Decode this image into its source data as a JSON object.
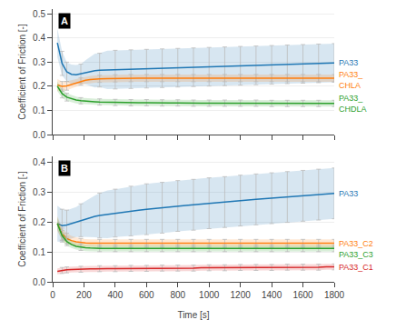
{
  "chart_data": [
    {
      "type": "line",
      "title": "A",
      "ylabel": "Coefficient of Friction [-]",
      "x": [
        30,
        60,
        90,
        120,
        150,
        180,
        210,
        240,
        270,
        300,
        350,
        400,
        450,
        500,
        550,
        600,
        650,
        700,
        750,
        800,
        850,
        900,
        950,
        1000,
        1050,
        1100,
        1150,
        1200,
        1250,
        1300,
        1350,
        1400,
        1450,
        1500,
        1550,
        1600,
        1650,
        1700,
        1750,
        1800
      ],
      "error_bar_x": [
        60,
        90,
        180,
        300,
        400,
        500,
        600,
        700,
        800,
        900,
        1000,
        1100,
        1200,
        1300,
        1400,
        1500,
        1600,
        1700,
        1800
      ],
      "series": [
        {
          "name": "PA33",
          "values": [
            0.38,
            0.295,
            0.26,
            0.25,
            0.248,
            0.252,
            0.258,
            0.262,
            0.265,
            0.267,
            0.268,
            0.269,
            0.27,
            0.271,
            0.272,
            0.273,
            0.274,
            0.275,
            0.276,
            0.277,
            0.278,
            0.279,
            0.28,
            0.281,
            0.282,
            0.283,
            0.284,
            0.285,
            0.286,
            0.287,
            0.288,
            0.289,
            0.29,
            0.291,
            0.292,
            0.293,
            0.294,
            0.295,
            0.296,
            0.297
          ],
          "error": [
            0.06,
            0.05,
            0.04,
            0.04,
            0.04,
            0.04,
            0.05,
            0.06,
            0.07,
            0.07,
            0.08,
            0.08,
            0.08,
            0.08,
            0.08,
            0.08,
            0.08,
            0.08,
            0.08,
            0.08,
            0.08,
            0.08,
            0.08,
            0.08,
            0.08,
            0.08,
            0.08,
            0.08,
            0.08,
            0.08,
            0.08,
            0.08,
            0.08,
            0.08,
            0.08,
            0.08,
            0.08,
            0.08,
            0.08,
            0.08
          ]
        },
        {
          "name": "PA33_\nCHLA",
          "values": [
            0.205,
            0.2,
            0.202,
            0.208,
            0.215,
            0.22,
            0.225,
            0.228,
            0.23,
            0.231,
            0.232,
            0.233,
            0.234,
            0.234,
            0.234,
            0.234,
            0.234,
            0.234,
            0.234,
            0.234,
            0.234,
            0.234,
            0.234,
            0.234,
            0.234,
            0.234,
            0.234,
            0.234,
            0.234,
            0.234,
            0.234,
            0.234,
            0.234,
            0.234,
            0.234,
            0.234,
            0.234,
            0.234,
            0.234,
            0.234
          ],
          "error": [
            0.025,
            0.02,
            0.018,
            0.016,
            0.015,
            0.015,
            0.015,
            0.015,
            0.015,
            0.015,
            0.015,
            0.015,
            0.015,
            0.015,
            0.015,
            0.015,
            0.015,
            0.015,
            0.015,
            0.015,
            0.015,
            0.015,
            0.015,
            0.015,
            0.015,
            0.015,
            0.015,
            0.015,
            0.015,
            0.015,
            0.015,
            0.015,
            0.015,
            0.015,
            0.015,
            0.015,
            0.015,
            0.015,
            0.015,
            0.015
          ]
        },
        {
          "name": "PA33_\nCHDLA",
          "values": [
            0.2,
            0.17,
            0.155,
            0.148,
            0.143,
            0.14,
            0.138,
            0.137,
            0.136,
            0.135,
            0.134,
            0.133,
            0.133,
            0.132,
            0.132,
            0.132,
            0.131,
            0.131,
            0.131,
            0.131,
            0.13,
            0.13,
            0.13,
            0.13,
            0.13,
            0.13,
            0.13,
            0.13,
            0.13,
            0.13,
            0.13,
            0.129,
            0.129,
            0.129,
            0.129,
            0.129,
            0.129,
            0.129,
            0.129,
            0.129
          ],
          "error": [
            0.02,
            0.018,
            0.016,
            0.015,
            0.014,
            0.013,
            0.013,
            0.013,
            0.013,
            0.013,
            0.013,
            0.013,
            0.013,
            0.013,
            0.013,
            0.013,
            0.013,
            0.013,
            0.013,
            0.013,
            0.013,
            0.013,
            0.013,
            0.013,
            0.013,
            0.013,
            0.013,
            0.013,
            0.013,
            0.013,
            0.013,
            0.013,
            0.013,
            0.013,
            0.013,
            0.013,
            0.013,
            0.013,
            0.013,
            0.013
          ]
        }
      ],
      "xlim": [
        0,
        1800
      ],
      "xticks": [
        0,
        200,
        400,
        600,
        800,
        1000,
        1200,
        1400,
        1600,
        1800
      ],
      "ylim": [
        0.0,
        0.52
      ],
      "yticks": [
        {
          "value": 0.0,
          "label": "0.0"
        },
        0.1,
        0.2,
        0.3,
        0.4,
        0.5
      ],
      "grid": true,
      "tick_labels": "y"
    },
    {
      "type": "line",
      "title": "B",
      "xlabel": "Time [s]",
      "ylabel": "Coefficient of Friction [-]",
      "x": [
        30,
        60,
        90,
        120,
        150,
        180,
        210,
        240,
        270,
        300,
        350,
        400,
        450,
        500,
        550,
        600,
        650,
        700,
        750,
        800,
        850,
        900,
        950,
        1000,
        1050,
        1100,
        1150,
        1200,
        1250,
        1300,
        1350,
        1400,
        1450,
        1500,
        1550,
        1600,
        1650,
        1700,
        1750,
        1800
      ],
      "error_bar_x": [
        60,
        90,
        180,
        300,
        400,
        500,
        600,
        700,
        800,
        900,
        1000,
        1100,
        1200,
        1300,
        1400,
        1500,
        1600,
        1700,
        1800
      ],
      "series": [
        {
          "name": "PA33",
          "values": [
            0.195,
            0.188,
            0.19,
            0.195,
            0.2,
            0.206,
            0.211,
            0.215,
            0.219,
            0.222,
            0.226,
            0.23,
            0.233,
            0.237,
            0.24,
            0.243,
            0.246,
            0.248,
            0.251,
            0.254,
            0.256,
            0.258,
            0.261,
            0.263,
            0.265,
            0.267,
            0.27,
            0.272,
            0.274,
            0.276,
            0.278,
            0.28,
            0.282,
            0.284,
            0.286,
            0.288,
            0.29,
            0.292,
            0.294,
            0.296
          ],
          "error": [
            0.06,
            0.055,
            0.05,
            0.05,
            0.05,
            0.055,
            0.06,
            0.065,
            0.07,
            0.075,
            0.08,
            0.08,
            0.082,
            0.083,
            0.084,
            0.085,
            0.085,
            0.085,
            0.085,
            0.085,
            0.085,
            0.085,
            0.085,
            0.085,
            0.085,
            0.085,
            0.085,
            0.085,
            0.085,
            0.085,
            0.085,
            0.085,
            0.085,
            0.085,
            0.085,
            0.085,
            0.085,
            0.085,
            0.085,
            0.085
          ]
        },
        {
          "name": "PA33_C2",
          "values": [
            0.195,
            0.16,
            0.145,
            0.138,
            0.134,
            0.131,
            0.13,
            0.129,
            0.129,
            0.129,
            0.129,
            0.129,
            0.129,
            0.129,
            0.129,
            0.129,
            0.129,
            0.129,
            0.129,
            0.129,
            0.129,
            0.129,
            0.129,
            0.129,
            0.129,
            0.129,
            0.129,
            0.129,
            0.129,
            0.129,
            0.129,
            0.129,
            0.129,
            0.129,
            0.129,
            0.129,
            0.129,
            0.129,
            0.129,
            0.129
          ],
          "error": [
            0.025,
            0.02,
            0.018,
            0.016,
            0.015,
            0.014,
            0.013,
            0.013,
            0.013,
            0.013,
            0.013,
            0.013,
            0.013,
            0.013,
            0.013,
            0.013,
            0.013,
            0.013,
            0.013,
            0.013,
            0.013,
            0.013,
            0.013,
            0.013,
            0.013,
            0.013,
            0.013,
            0.013,
            0.013,
            0.013,
            0.013,
            0.013,
            0.013,
            0.013,
            0.013,
            0.013,
            0.013,
            0.013,
            0.013,
            0.013
          ]
        },
        {
          "name": "PA33_C3",
          "values": [
            0.195,
            0.155,
            0.135,
            0.125,
            0.119,
            0.116,
            0.114,
            0.113,
            0.112,
            0.112,
            0.112,
            0.112,
            0.112,
            0.112,
            0.112,
            0.112,
            0.112,
            0.112,
            0.112,
            0.112,
            0.112,
            0.112,
            0.112,
            0.112,
            0.112,
            0.112,
            0.112,
            0.112,
            0.112,
            0.112,
            0.112,
            0.112,
            0.112,
            0.112,
            0.112,
            0.112,
            0.112,
            0.112,
            0.112,
            0.112
          ],
          "error": [
            0.02,
            0.017,
            0.014,
            0.012,
            0.011,
            0.011,
            0.011,
            0.011,
            0.011,
            0.011,
            0.011,
            0.011,
            0.011,
            0.011,
            0.011,
            0.011,
            0.011,
            0.011,
            0.011,
            0.011,
            0.011,
            0.011,
            0.011,
            0.011,
            0.011,
            0.011,
            0.011,
            0.011,
            0.011,
            0.011,
            0.011,
            0.011,
            0.011,
            0.011,
            0.011,
            0.011,
            0.011,
            0.011,
            0.011,
            0.011
          ]
        },
        {
          "name": "PA33_C1",
          "values": [
            0.035,
            0.038,
            0.04,
            0.041,
            0.042,
            0.042,
            0.043,
            0.043,
            0.043,
            0.044,
            0.044,
            0.044,
            0.044,
            0.045,
            0.045,
            0.045,
            0.045,
            0.046,
            0.046,
            0.046,
            0.046,
            0.046,
            0.047,
            0.047,
            0.047,
            0.047,
            0.047,
            0.048,
            0.048,
            0.048,
            0.048,
            0.048,
            0.048,
            0.049,
            0.049,
            0.049,
            0.049,
            0.049,
            0.05,
            0.05
          ],
          "error": [
            0.01,
            0.01,
            0.01,
            0.01,
            0.01,
            0.01,
            0.01,
            0.01,
            0.01,
            0.01,
            0.01,
            0.01,
            0.01,
            0.01,
            0.01,
            0.01,
            0.01,
            0.01,
            0.01,
            0.01,
            0.01,
            0.01,
            0.01,
            0.01,
            0.01,
            0.01,
            0.01,
            0.01,
            0.01,
            0.01,
            0.01,
            0.01,
            0.01,
            0.01,
            0.01,
            0.01,
            0.01,
            0.01,
            0.01,
            0.01
          ]
        }
      ],
      "xlim": [
        0,
        1800
      ],
      "xticks": [
        0,
        200,
        400,
        600,
        800,
        1000,
        1200,
        1400,
        1600,
        1800
      ],
      "ylim": [
        0.0,
        0.42
      ],
      "yticks": [
        {
          "value": 0.0,
          "label": "0.0"
        },
        0.1,
        0.2,
        0.3,
        0.4
      ],
      "grid": true
    }
  ]
}
